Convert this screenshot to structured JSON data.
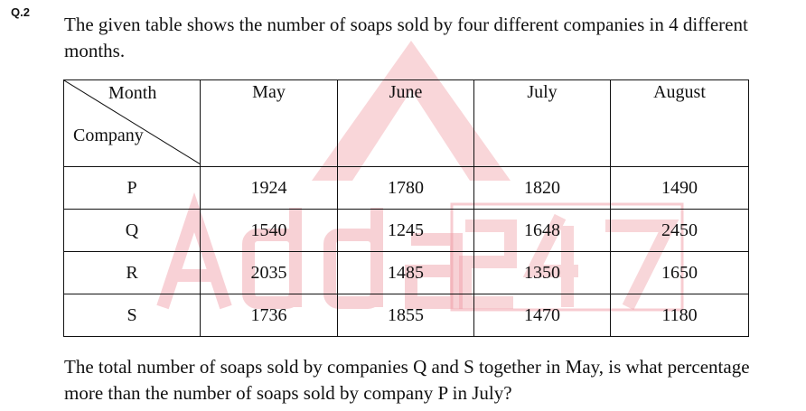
{
  "question_number": "Q.2",
  "intro_text": "The given table shows the number of soaps sold by four different companies in 4 different months.",
  "table": {
    "corner_top": "Month",
    "corner_bottom": "Company",
    "months": [
      "May",
      "June",
      "July",
      "August"
    ],
    "rows": [
      {
        "company": "P",
        "values": [
          "1924",
          "1780",
          "1820",
          "1490"
        ]
      },
      {
        "company": "Q",
        "values": [
          "1540",
          "1245",
          "1648",
          "2450"
        ]
      },
      {
        "company": "R",
        "values": [
          "2035",
          "1485",
          "1350",
          "1650"
        ]
      },
      {
        "company": "S",
        "values": [
          "1736",
          "1855",
          "1470",
          "1180"
        ]
      }
    ]
  },
  "watermark": {
    "text": "Adda247",
    "color": "#f0a0a8"
  },
  "question_text": "The total number of soaps sold by companies Q and S together in May, is what percentage more than the number of soaps sold by company P in July?"
}
